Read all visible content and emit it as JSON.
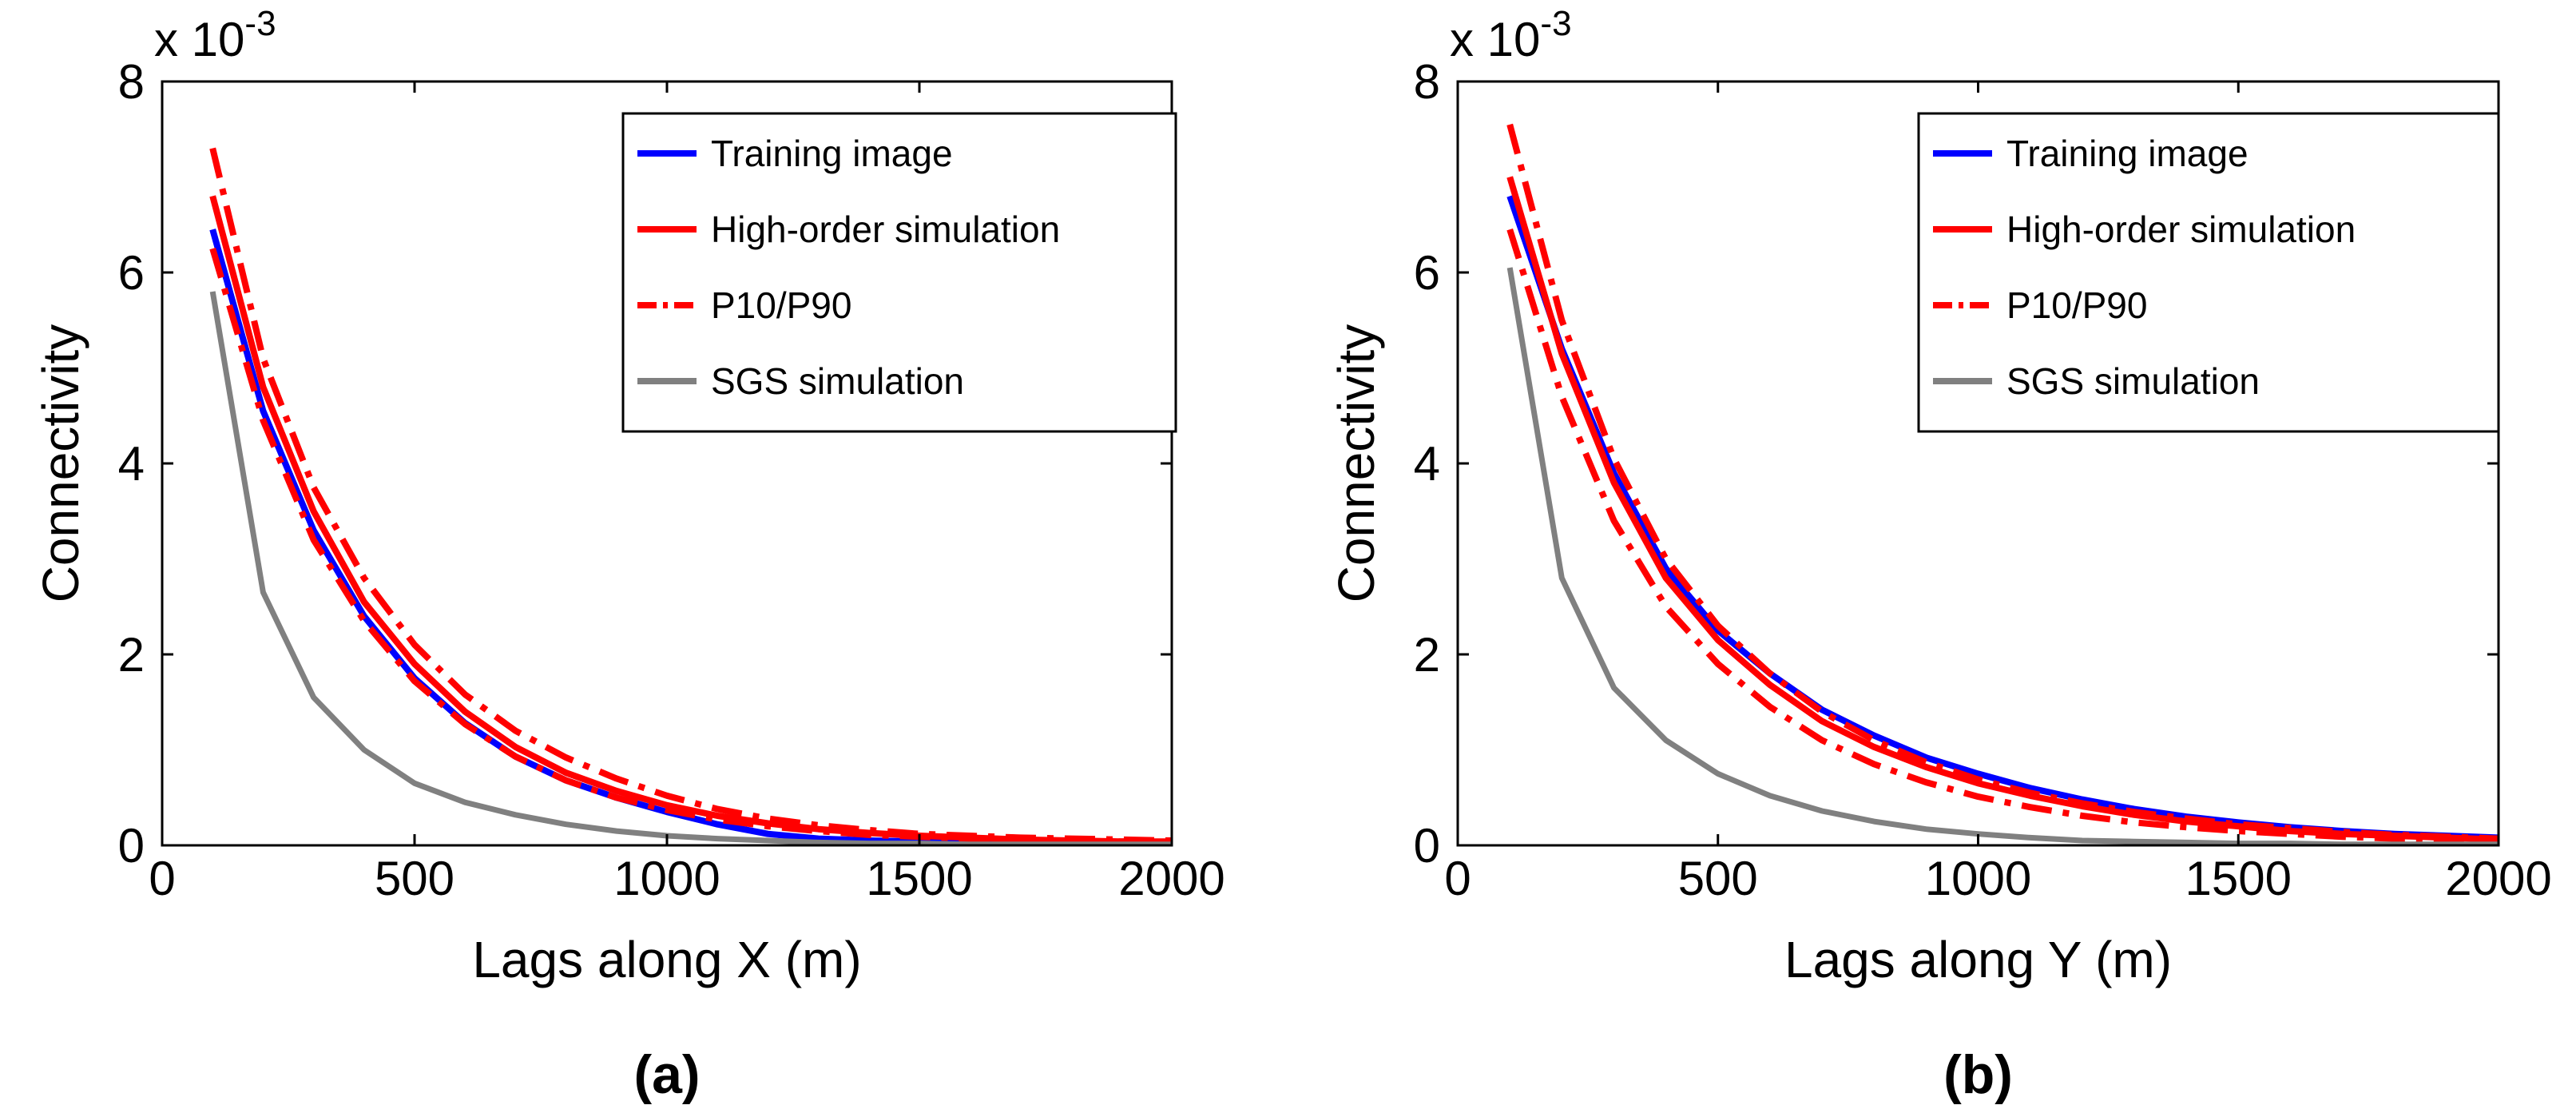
{
  "colors": {
    "training": "#0000ff",
    "high_order": "#ff0000",
    "p10p90": "#ff0000",
    "sgs": "#808080"
  },
  "chart_data": [
    {
      "type": "line",
      "panel_label": "(a)",
      "xlabel": "Lags along X (m)",
      "ylabel": "Connectivity",
      "y_multiplier": {
        "base": "x 10",
        "exponent": "-3"
      },
      "xlim": [
        0,
        2000
      ],
      "ylim": [
        0,
        8
      ],
      "xticks": [
        0,
        500,
        1000,
        1500,
        2000
      ],
      "yticks": [
        0,
        2,
        4,
        6,
        8
      ],
      "x": [
        100,
        200,
        300,
        400,
        500,
        600,
        700,
        800,
        900,
        1000,
        1100,
        1200,
        1300,
        1400,
        1500,
        1600,
        1700,
        1800,
        1900,
        2000
      ],
      "series": [
        {
          "name": "Training image",
          "key": "training",
          "style": "solid",
          "values": [
            6.45,
            4.55,
            3.3,
            2.4,
            1.75,
            1.28,
            0.93,
            0.68,
            0.5,
            0.35,
            0.22,
            0.12,
            0.07,
            0.05,
            0.04,
            0.03,
            0.03,
            0.02,
            0.02,
            0.02
          ]
        },
        {
          "name": "High-order simulation",
          "key": "high_order",
          "style": "solid",
          "values": [
            6.8,
            4.8,
            3.5,
            2.55,
            1.9,
            1.4,
            1.03,
            0.76,
            0.57,
            0.42,
            0.31,
            0.23,
            0.17,
            0.13,
            0.1,
            0.08,
            0.06,
            0.05,
            0.04,
            0.04
          ]
        },
        {
          "name": "P10/P90",
          "key": "p10p90",
          "style": "dashdot",
          "legend": false,
          "values": [
            7.3,
            5.1,
            3.75,
            2.8,
            2.1,
            1.58,
            1.2,
            0.92,
            0.7,
            0.52,
            0.38,
            0.28,
            0.21,
            0.16,
            0.12,
            0.1,
            0.08,
            0.07,
            0.06,
            0.05
          ]
        },
        {
          "name": "P10/P90",
          "key": "p10p90",
          "style": "dashdot",
          "values": [
            6.25,
            4.45,
            3.2,
            2.35,
            1.72,
            1.27,
            0.93,
            0.68,
            0.5,
            0.37,
            0.27,
            0.2,
            0.15,
            0.11,
            0.09,
            0.07,
            0.05,
            0.04,
            0.04,
            0.03
          ]
        },
        {
          "name": "SGS simulation",
          "key": "sgs",
          "style": "solid",
          "values": [
            5.8,
            2.65,
            1.55,
            1.0,
            0.65,
            0.45,
            0.32,
            0.22,
            0.15,
            0.1,
            0.07,
            0.05,
            0.03,
            0.02,
            0.02,
            0.01,
            0.01,
            0.01,
            0.01,
            0.01
          ]
        }
      ],
      "legend": [
        "Training image",
        "High-order simulation",
        "P10/P90",
        "SGS simulation"
      ],
      "legend_position": "top-right"
    },
    {
      "type": "line",
      "panel_label": "(b)",
      "xlabel": "Lags along Y (m)",
      "ylabel": "Connectivity",
      "y_multiplier": {
        "base": "x 10",
        "exponent": "-3"
      },
      "xlim": [
        0,
        2000
      ],
      "ylim": [
        0,
        8
      ],
      "xticks": [
        0,
        500,
        1000,
        1500,
        2000
      ],
      "yticks": [
        0,
        2,
        4,
        6,
        8
      ],
      "x": [
        100,
        200,
        300,
        400,
        500,
        600,
        700,
        800,
        900,
        1000,
        1100,
        1200,
        1300,
        1400,
        1500,
        1600,
        1700,
        1800,
        1900,
        2000
      ],
      "series": [
        {
          "name": "Training image",
          "key": "training",
          "style": "solid",
          "values": [
            6.8,
            5.2,
            3.9,
            2.9,
            2.25,
            1.8,
            1.42,
            1.15,
            0.92,
            0.75,
            0.6,
            0.48,
            0.38,
            0.3,
            0.24,
            0.19,
            0.15,
            0.12,
            0.1,
            0.08
          ]
        },
        {
          "name": "High-order simulation",
          "key": "high_order",
          "style": "solid",
          "values": [
            7.0,
            5.15,
            3.8,
            2.8,
            2.15,
            1.68,
            1.3,
            1.03,
            0.82,
            0.65,
            0.52,
            0.41,
            0.32,
            0.25,
            0.2,
            0.15,
            0.12,
            0.1,
            0.08,
            0.06
          ]
        },
        {
          "name": "P10/P90",
          "key": "p10p90",
          "style": "dashdot",
          "legend": false,
          "values": [
            7.55,
            5.5,
            4.05,
            3.0,
            2.3,
            1.8,
            1.4,
            1.1,
            0.87,
            0.69,
            0.55,
            0.44,
            0.35,
            0.28,
            0.22,
            0.18,
            0.14,
            0.11,
            0.09,
            0.07
          ]
        },
        {
          "name": "P10/P90",
          "key": "p10p90",
          "style": "dashdot",
          "values": [
            6.45,
            4.7,
            3.4,
            2.5,
            1.9,
            1.45,
            1.1,
            0.85,
            0.66,
            0.51,
            0.4,
            0.31,
            0.24,
            0.19,
            0.15,
            0.12,
            0.09,
            0.07,
            0.06,
            0.05
          ]
        },
        {
          "name": "SGS simulation",
          "key": "sgs",
          "style": "solid",
          "values": [
            6.05,
            2.8,
            1.65,
            1.1,
            0.75,
            0.52,
            0.36,
            0.25,
            0.17,
            0.12,
            0.08,
            0.05,
            0.04,
            0.03,
            0.02,
            0.02,
            0.01,
            0.01,
            0.01,
            0.01
          ]
        }
      ],
      "legend": [
        "Training image",
        "High-order simulation",
        "P10/P90",
        "SGS simulation"
      ],
      "legend_position": "top-right"
    }
  ]
}
